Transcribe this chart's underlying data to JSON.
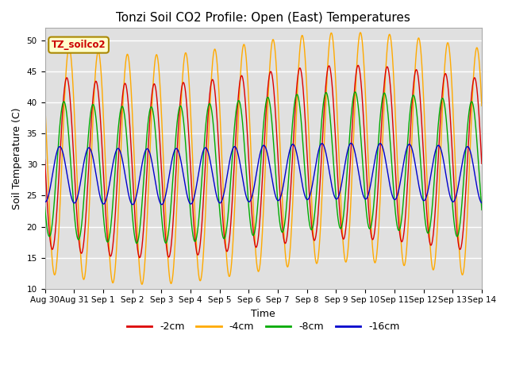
{
  "title": "Tonzi Soil CO2 Profile: Open (East) Temperatures",
  "xlabel": "Time",
  "ylabel": "Soil Temperature (C)",
  "ylim": [
    10,
    52
  ],
  "yticks": [
    10,
    15,
    20,
    25,
    30,
    35,
    40,
    45,
    50
  ],
  "x_labels": [
    "Aug 30",
    "Aug 31",
    "Sep 1",
    "Sep 2",
    "Sep 3",
    "Sep 4",
    "Sep 5",
    "Sep 6",
    "Sep 7",
    "Sep 8",
    "Sep 9",
    "Sep 10",
    "Sep 11",
    "Sep 12",
    "Sep 13",
    "Sep 14"
  ],
  "legend_label": "TZ_soilco2",
  "series_labels": [
    "-2cm",
    "-4cm",
    "-8cm",
    "-16cm"
  ],
  "series_colors": [
    "#dd0000",
    "#ffaa00",
    "#00aa00",
    "#0000cc"
  ],
  "background_color": "#e0e0e0",
  "figure_background": "#ffffff",
  "grid_color": "#ffffff",
  "n_days": 15,
  "points_per_day": 288,
  "mean_4cm": 31.0,
  "amp_4cm": 18.5,
  "phase_4cm": 0.0,
  "mean_2cm": 30.5,
  "amp_2cm": 14.0,
  "phase_2cm": 0.08,
  "mean_8cm": 29.5,
  "amp_8cm": 11.0,
  "phase_8cm": 0.18,
  "mean_16cm": 28.5,
  "amp_16cm": 4.5,
  "phase_16cm": 0.32
}
